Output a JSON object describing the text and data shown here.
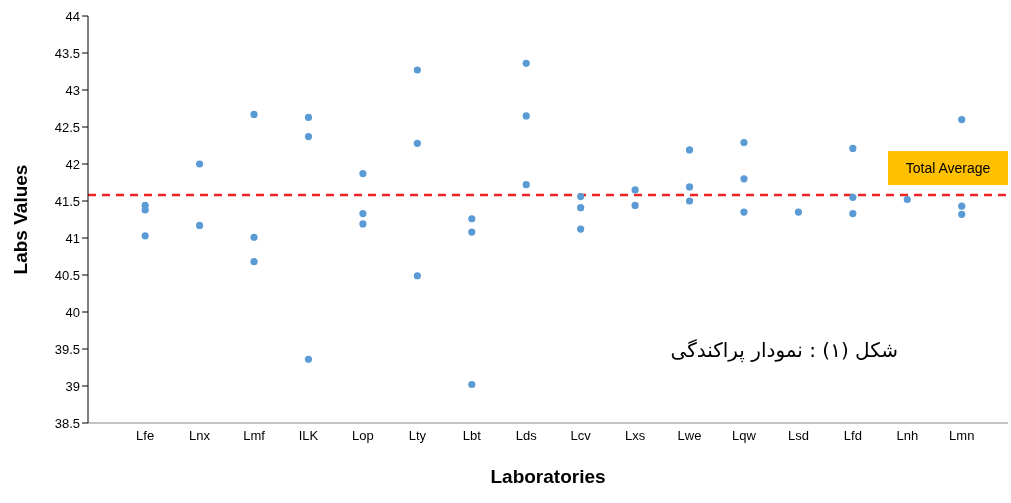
{
  "chart_data": {
    "type": "scatter",
    "xlabel": "Laboratories",
    "ylabel": "Labs Values",
    "categories": [
      "Lfe",
      "Lnx",
      "Lmf",
      "ILK",
      "Lop",
      "Lty",
      "Lbt",
      "Lds",
      "Lcv",
      "Lxs",
      "Lwe",
      "Lqw",
      "Lsd",
      "Lfd",
      "Lnh",
      "Lmn"
    ],
    "series": [
      {
        "color": "#5b9bd5",
        "x": [
          "Lfe",
          "Lfe",
          "Lfe",
          "Lfe",
          "Lnx",
          "Lnx",
          "Lmf",
          "Lmf",
          "Lmf",
          "ILK",
          "ILK",
          "ILK",
          "Lop",
          "Lop",
          "Lop",
          "Lty",
          "Lty",
          "Lty",
          "Lbt",
          "Lbt",
          "Lbt",
          "Lds",
          "Lds",
          "Lds",
          "Lcv",
          "Lcv",
          "Lcv",
          "Lxs",
          "Lxs",
          "Lwe",
          "Lwe",
          "Lwe",
          "Lqw",
          "Lqw",
          "Lqw",
          "Lsd",
          "Lsd",
          "Lfd",
          "Lfd",
          "Lfd",
          "Lnh",
          "Lmn",
          "Lmn",
          "Lmn"
        ],
        "values": [
          41.44,
          41.38,
          null,
          41.03,
          42.0,
          41.17,
          42.67,
          41.01,
          40.68,
          42.63,
          42.37,
          39.36,
          41.87,
          41.33,
          41.19,
          43.27,
          42.28,
          40.49,
          41.26,
          41.08,
          39.02,
          43.36,
          42.65,
          41.72,
          41.56,
          41.41,
          41.12,
          41.65,
          41.44,
          42.19,
          41.69,
          41.5,
          42.29,
          41.8,
          41.35,
          null,
          41.35,
          42.21,
          41.55,
          41.33,
          41.52,
          42.6,
          41.43,
          41.32
        ]
      }
    ],
    "ylim": [
      38.5,
      44
    ],
    "yticks": [
      38.5,
      39,
      39.5,
      40,
      40.5,
      41,
      41.5,
      42,
      42.5,
      43,
      43.5,
      44
    ],
    "grid": false,
    "legend": false,
    "marker": "circle",
    "ref_lines": [
      {
        "axis": "y",
        "value": 41.58,
        "label": "Total Average",
        "color": "#ee2222",
        "line_style": "dashed"
      }
    ],
    "annotations": [
      "شکل (۱) : نمودار پراکندگی"
    ]
  }
}
